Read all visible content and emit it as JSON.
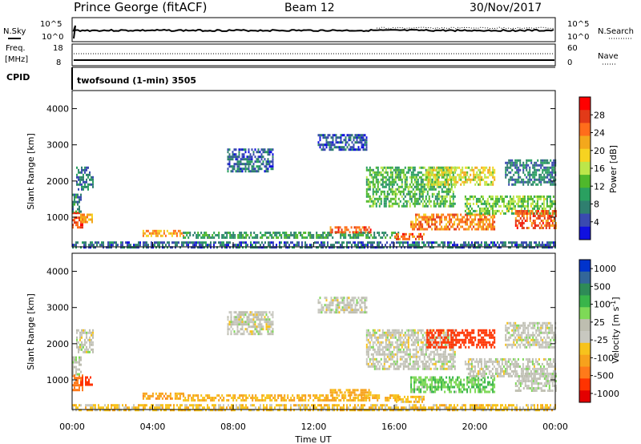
{
  "header": {
    "station": "Prince George (fitACF)",
    "beam": "Beam 12",
    "date": "30/Nov/2017"
  },
  "status_panels": {
    "nsky_label": "N.Sky",
    "nsearch_label": "N.Search",
    "freq_label_1": "Freq.",
    "freq_label_2": "[MHz]",
    "nave_label": "Nave",
    "cpid_label": "CPID",
    "noise_left_ticks": [
      "10^5",
      "10^0"
    ],
    "noise_right_ticks": [
      "10^5",
      "10^0"
    ],
    "freq_left_ticks": [
      "18",
      "8"
    ],
    "nave_right_ticks": [
      "60",
      "0"
    ],
    "cpid_text": "twofsound (1-min) 3505"
  },
  "colors": {
    "power_scale": [
      "#1010e0",
      "#3a4ab0",
      "#2f7f6f",
      "#2aa060",
      "#4fb82c",
      "#bce64a",
      "#f6d321",
      "#f3a81c",
      "#ff6d1b",
      "#e23a18",
      "#ff0000"
    ],
    "velocity_scale": [
      "#0033cc",
      "#336699",
      "#2e8b57",
      "#39b54a",
      "#7ed957",
      "#bebeb0",
      "#c8c8c0",
      "#f7c31c",
      "#f7a21c",
      "#ff7a1a",
      "#ff3300",
      "#e30000"
    ]
  },
  "chart_data": [
    {
      "type": "heatmap",
      "title": "Power",
      "ylabel": "Slant Range [km]",
      "ylim": [
        180,
        4500
      ],
      "yticks": [
        "1000",
        "2000",
        "3000",
        "4000"
      ],
      "colorbar_label": "Power [dB]",
      "colorbar_ticks": [
        "4",
        "8",
        "12",
        "16",
        "20",
        "24",
        "28"
      ],
      "colorbar_range": [
        0,
        32
      ],
      "grid": false,
      "features": [
        {
          "t0": 0.0,
          "t1": 0.5,
          "r0": 700,
          "r1": 1150,
          "v": 27
        },
        {
          "t0": 0.0,
          "t1": 0.4,
          "r0": 1150,
          "r1": 1650,
          "v": 9
        },
        {
          "t0": 0.4,
          "t1": 1.0,
          "r0": 850,
          "r1": 1100,
          "v": 22
        },
        {
          "t0": 0.2,
          "t1": 1.0,
          "r0": 1800,
          "r1": 2400,
          "v": 7
        },
        {
          "t0": 3.5,
          "t1": 5.5,
          "r0": 500,
          "r1": 650,
          "v": 22
        },
        {
          "t0": 5.5,
          "t1": 16.2,
          "r0": 450,
          "r1": 600,
          "v": 10
        },
        {
          "t0": 12.8,
          "t1": 14.8,
          "r0": 600,
          "r1": 750,
          "v": 26
        },
        {
          "t0": 7.7,
          "t1": 10.0,
          "r0": 2300,
          "r1": 2900,
          "v": 6
        },
        {
          "t0": 12.2,
          "t1": 14.6,
          "r0": 2900,
          "r1": 3300,
          "v": 5
        },
        {
          "t0": 14.6,
          "t1": 19.0,
          "r0": 1300,
          "r1": 2400,
          "v": 12
        },
        {
          "t0": 16.8,
          "t1": 21.0,
          "r0": 700,
          "r1": 1100,
          "v": 24
        },
        {
          "t0": 16.0,
          "t1": 17.5,
          "r0": 420,
          "r1": 560,
          "v": 26
        },
        {
          "t0": 17.6,
          "t1": 21.0,
          "r0": 1900,
          "r1": 2400,
          "v": 18
        },
        {
          "t0": 19.5,
          "t1": 24.0,
          "r0": 1100,
          "r1": 1600,
          "v": 14
        },
        {
          "t0": 22.0,
          "t1": 24.0,
          "r0": 700,
          "r1": 1200,
          "v": 26
        },
        {
          "t0": 21.5,
          "t1": 24.0,
          "r0": 1900,
          "r1": 2600,
          "v": 7
        },
        {
          "t0": 0.0,
          "t1": 24.0,
          "r0": 180,
          "r1": 330,
          "v": 6
        }
      ]
    },
    {
      "type": "heatmap",
      "title": "Velocity",
      "ylabel": "Slant Range [km]",
      "ylim": [
        180,
        4500
      ],
      "yticks": [
        "1000",
        "2000",
        "3000",
        "4000"
      ],
      "xlabel": "Time UT",
      "xticks": [
        "00:00",
        "04:00",
        "08:00",
        "12:00",
        "16:00",
        "20:00",
        "00:00"
      ],
      "xlim": [
        0,
        24
      ],
      "colorbar_label": "Velocity [m s^-1]",
      "colorbar_ticks": [
        "1000",
        "500",
        "100",
        "25",
        "-25",
        "-100",
        "-500",
        "-1000"
      ],
      "grid": false,
      "features": [
        {
          "t0": 0.0,
          "t1": 0.5,
          "r0": 700,
          "r1": 1150,
          "v": -200
        },
        {
          "t0": 0.0,
          "t1": 0.4,
          "r0": 1150,
          "r1": 1650,
          "v": 10
        },
        {
          "t0": 0.4,
          "t1": 1.0,
          "r0": 850,
          "r1": 1100,
          "v": -300
        },
        {
          "t0": 0.2,
          "t1": 1.0,
          "r0": 1800,
          "r1": 2400,
          "v": 0
        },
        {
          "t0": 3.5,
          "t1": 5.5,
          "r0": 500,
          "r1": 650,
          "v": -80
        },
        {
          "t0": 5.5,
          "t1": 16.2,
          "r0": 450,
          "r1": 600,
          "v": -60
        },
        {
          "t0": 12.8,
          "t1": 14.8,
          "r0": 600,
          "r1": 750,
          "v": -70
        },
        {
          "t0": 7.7,
          "t1": 10.0,
          "r0": 2300,
          "r1": 2900,
          "v": 0
        },
        {
          "t0": 12.2,
          "t1": 14.6,
          "r0": 2900,
          "r1": 3300,
          "v": 0
        },
        {
          "t0": 14.6,
          "t1": 19.0,
          "r0": 1300,
          "r1": 2400,
          "v": 0
        },
        {
          "t0": 16.8,
          "t1": 21.0,
          "r0": 700,
          "r1": 1100,
          "v": 50
        },
        {
          "t0": 16.0,
          "t1": 17.5,
          "r0": 420,
          "r1": 560,
          "v": -50
        },
        {
          "t0": 17.6,
          "t1": 21.0,
          "r0": 1900,
          "r1": 2400,
          "v": -300
        },
        {
          "t0": 19.5,
          "t1": 24.0,
          "r0": 1100,
          "r1": 1600,
          "v": 0
        },
        {
          "t0": 22.0,
          "t1": 24.0,
          "r0": 700,
          "r1": 1200,
          "v": 5
        },
        {
          "t0": 21.5,
          "t1": 24.0,
          "r0": 1900,
          "r1": 2600,
          "v": 0
        },
        {
          "t0": 0.0,
          "t1": 24.0,
          "r0": 180,
          "r1": 330,
          "v": -40
        }
      ]
    }
  ]
}
